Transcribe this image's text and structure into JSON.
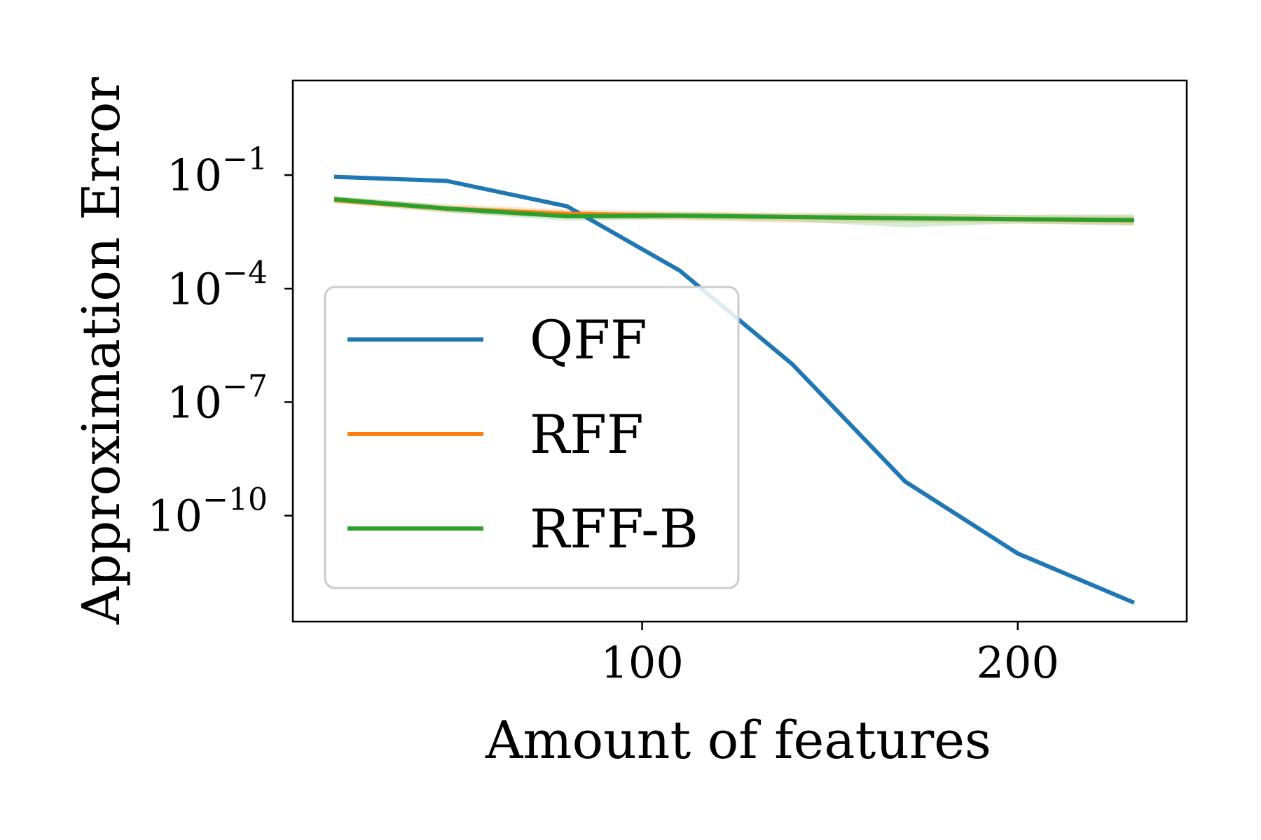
{
  "chart_data": {
    "type": "line",
    "xlabel": "Amount of features",
    "ylabel": "Approximation Error",
    "x": [
      18,
      48,
      80,
      110,
      140,
      170,
      200,
      231
    ],
    "x_ticks": [
      {
        "value": 100,
        "label": "100"
      },
      {
        "value": 200,
        "label": "200"
      }
    ],
    "xlim": [
      7,
      245
    ],
    "y_scale": "log",
    "ylim_log10": [
      -12.8,
      1.5
    ],
    "y_ticks": [
      {
        "exp": -1,
        "base": "10",
        "label": "−1"
      },
      {
        "exp": -4,
        "base": "10",
        "label": "−4"
      },
      {
        "exp": -7,
        "base": "10",
        "label": "−7"
      },
      {
        "exp": -10,
        "base": "10",
        "label": "−10"
      }
    ],
    "grid": false,
    "legend_position": "center-left",
    "series": [
      {
        "name": "QFF",
        "color": "#1f77b4",
        "values": [
          0.09,
          0.07,
          0.015,
          0.0003,
          1e-06,
          8e-10,
          1e-11,
          5e-13
        ]
      },
      {
        "name": "RFF",
        "color": "#ff7f0e",
        "values": [
          0.022,
          0.013,
          0.0095,
          0.0085,
          0.0078,
          0.0072,
          0.0068,
          0.0064
        ],
        "band_low": [
          0.018,
          0.01,
          0.0072,
          0.0065,
          0.0055,
          0.0056,
          0.0053,
          0.0048
        ],
        "band_high": [
          0.027,
          0.017,
          0.0125,
          0.011,
          0.01,
          0.0098,
          0.0088,
          0.0085
        ]
      },
      {
        "name": "RFF-B",
        "color": "#2ca02c",
        "values": [
          0.023,
          0.013,
          0.0082,
          0.0085,
          0.0078,
          0.0072,
          0.0068,
          0.0065
        ],
        "band_low": [
          0.019,
          0.0105,
          0.0062,
          0.0068,
          0.006,
          0.0042,
          0.0052,
          0.0046
        ],
        "band_high": [
          0.028,
          0.016,
          0.0105,
          0.0105,
          0.0098,
          0.0095,
          0.009,
          0.0092
        ]
      }
    ]
  }
}
